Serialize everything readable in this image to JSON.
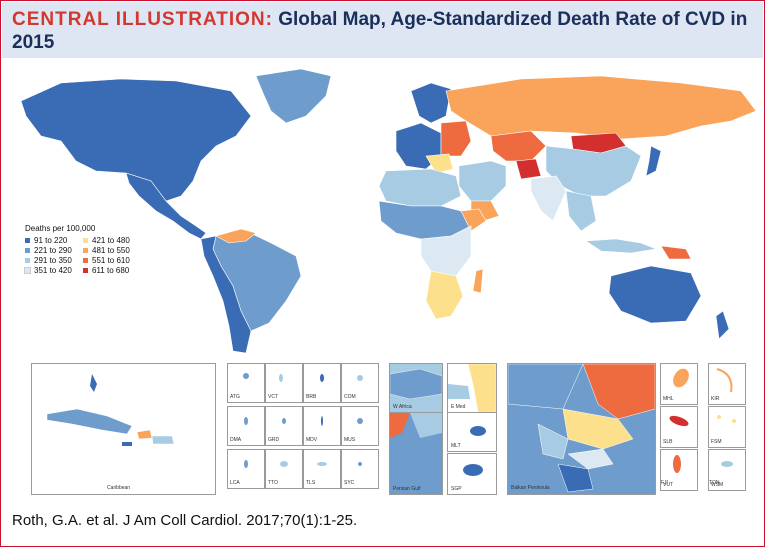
{
  "header": {
    "lead": "CENTRAL ILLUSTRATION:",
    "title": "Global Map, Age-Standardized Death Rate of CVD in 2015"
  },
  "legend": {
    "title": "Deaths per 100,000",
    "items": [
      {
        "label": "91 to 220",
        "color": "#3a6cb5"
      },
      {
        "label": "221 to 290",
        "color": "#6d9ccd"
      },
      {
        "label": "291 to 350",
        "color": "#a6cbe3"
      },
      {
        "label": "351 to 420",
        "color": "#dde9f2"
      },
      {
        "label": "421 to 480",
        "color": "#fde08c"
      },
      {
        "label": "481 to 550",
        "color": "#f9a45a"
      },
      {
        "label": "551 to 610",
        "color": "#ee6a3f"
      },
      {
        "label": "611 to 680",
        "color": "#d42f2f"
      }
    ]
  },
  "insets": {
    "caribbean": "Caribbean",
    "w_africa": "W Africa",
    "e_med": "E Med",
    "persian_gulf": "Persian Gulf",
    "mlt": "MLT",
    "sgp": "SGP",
    "balkan": "Balkan Peninsula",
    "small": [
      "ATG",
      "VCT",
      "BRB",
      "COM",
      "DMA",
      "GRD",
      "MDV",
      "MUS",
      "LCA",
      "TTO",
      "TLS",
      "SYC"
    ],
    "pacific": [
      "MHL",
      "KIR",
      "SLB",
      "FSM",
      "VUT",
      "WSM",
      "FJI",
      "TON"
    ]
  },
  "citation": "Roth, G.A. et al. J Am Coll Cardiol. 2017;70(1):1-25."
}
